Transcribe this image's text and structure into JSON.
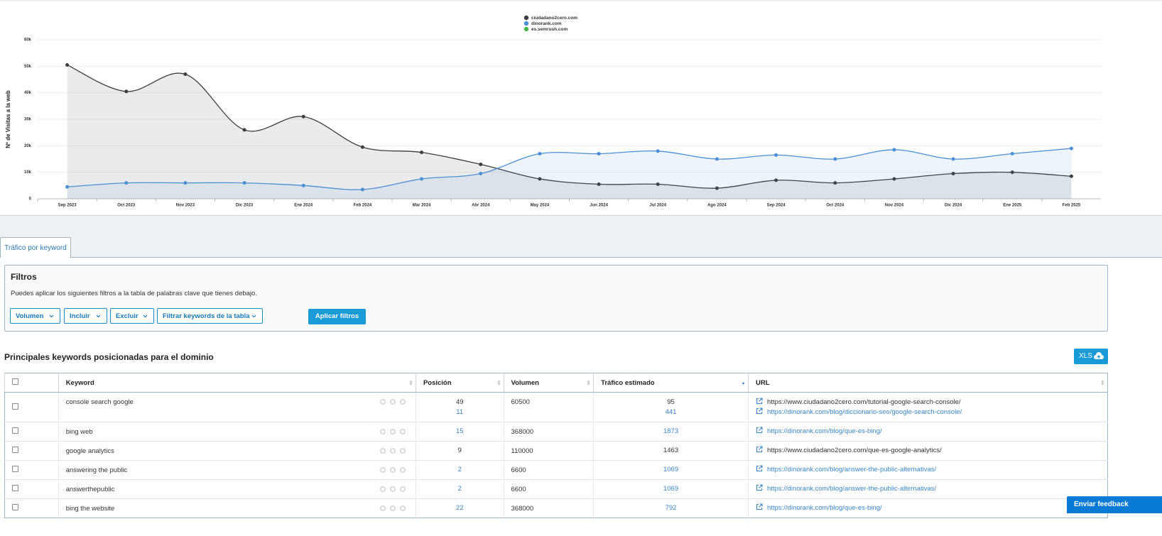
{
  "chart_data": {
    "type": "line",
    "ylabel": "Nº de Visitas a la web",
    "categories": [
      "Sep 2023",
      "Oct 2023",
      "Nov 2023",
      "Dic 2023",
      "Ene 2024",
      "Feb 2024",
      "Mar 2024",
      "Abr 2024",
      "May 2024",
      "Jun 2024",
      "Jul 2024",
      "Ago 2024",
      "Sep 2024",
      "Oct 2024",
      "Nov 2024",
      "Dic 2024",
      "Ene 2025",
      "Feb 2025"
    ],
    "series": [
      {
        "name": "ciudadano2cero.com",
        "color": "#3d3d3d",
        "values": [
          50500,
          40500,
          47000,
          26000,
          31000,
          19500,
          17500,
          13000,
          7500,
          5500,
          5500,
          4000,
          7000,
          6000,
          7500,
          9500,
          10000,
          8500
        ]
      },
      {
        "name": "dinorank.com",
        "color": "#4a8fd6",
        "values": [
          4500,
          6000,
          6000,
          6000,
          5000,
          3500,
          7500,
          9500,
          17000,
          17000,
          18000,
          15000,
          16500,
          15000,
          18500,
          15000,
          17000,
          19000
        ]
      },
      {
        "name": "es.semrush.com",
        "color": "#4cb84c",
        "values": [
          null,
          null,
          null,
          null,
          null,
          null,
          null,
          null,
          null,
          null,
          null,
          null,
          null,
          null,
          null,
          null,
          null,
          null
        ]
      }
    ],
    "ylim": [
      0,
      60000
    ],
    "yticks": [
      0,
      {
        "value": 10000,
        "label": "10k"
      },
      {
        "value": 20000,
        "label": "20k"
      },
      {
        "value": 30000,
        "label": "30k"
      },
      {
        "value": 40000,
        "label": "40k"
      },
      {
        "value": 50000,
        "label": "50k"
      },
      {
        "value": 60000,
        "label": "60k"
      }
    ],
    "grid": true,
    "legend": "top"
  },
  "tabs": [
    "Tráfico por keyword"
  ],
  "filters": {
    "title": "Filtros",
    "description": "Puedes aplicar los siguientes filtros a la tabla de palabras clave que tienes debajo.",
    "dropdowns": [
      "Volumen",
      "Incluir",
      "Excluir",
      "Filtrar keywords de la tabla"
    ],
    "apply": "Aplicar filtros"
  },
  "table": {
    "title": "Principales keywords posicionadas para el dominio",
    "export": "XLS",
    "columns": [
      "Keyword",
      "Posición",
      "Volumen",
      "Tráfico estimado",
      "URL"
    ],
    "rows": [
      {
        "keyword": "console search google",
        "volume": 60500,
        "entries": [
          {
            "position": 49,
            "traffic": 95,
            "url": "https://www.ciudadano2cero.com/tutorial-google-search-console/",
            "color": "#333333"
          },
          {
            "position": 11,
            "traffic": 441,
            "url": "https://dinorank.com/blog/diccionario-seo/google-search-console/",
            "color": "#3a86c8"
          }
        ]
      },
      {
        "keyword": "bing web",
        "volume": 368000,
        "entries": [
          {
            "position": 15,
            "traffic": 1873,
            "url": "https://dinorank.com/blog/que-es-bing/",
            "color": "#3a86c8"
          }
        ]
      },
      {
        "keyword": "google analytics",
        "volume": 110000,
        "entries": [
          {
            "position": 9,
            "traffic": 1463,
            "url": "https://www.ciudadano2cero.com/que-es-google-analytics/",
            "color": "#333333"
          }
        ]
      },
      {
        "keyword": "answering the public",
        "volume": 6600,
        "entries": [
          {
            "position": 2,
            "traffic": 1069,
            "url": "https://dinorank.com/blog/answer-the-public-alternativas/",
            "color": "#3a86c8"
          }
        ]
      },
      {
        "keyword": "answerthepublic",
        "volume": 6600,
        "entries": [
          {
            "position": 2,
            "traffic": 1069,
            "url": "https://dinorank.com/blog/answer-the-public-alternativas/",
            "color": "#3a86c8"
          }
        ]
      },
      {
        "keyword": "bing the website",
        "volume": 368000,
        "entries": [
          {
            "position": 22,
            "traffic": 792,
            "url": "https://dinorank.com/blog/que-es-bing/",
            "color": "#3a86c8"
          }
        ]
      }
    ]
  },
  "feedback": "Enviar feedback"
}
